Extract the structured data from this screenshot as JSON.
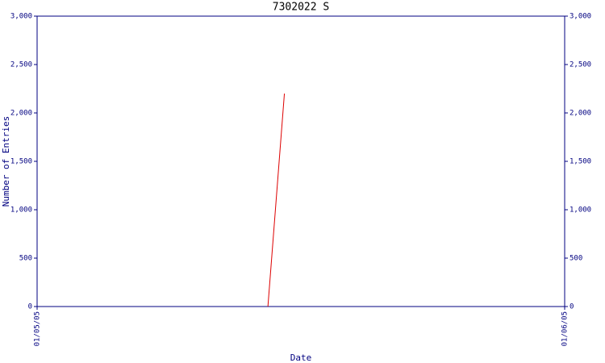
{
  "chart_data": {
    "type": "line",
    "title": "7302022 S",
    "x_label": "Date",
    "y_label": "Number of Entries",
    "categories": [
      "01/05/05",
      null,
      null,
      null,
      null,
      null,
      null,
      null,
      null,
      null,
      null,
      null,
      null,
      null,
      null,
      null,
      null,
      null,
      null,
      null,
      null,
      null,
      null,
      null,
      null,
      null,
      null,
      null,
      null,
      null,
      null,
      null,
      "01/06/05"
    ],
    "values": [
      null,
      null,
      null,
      null,
      null,
      null,
      null,
      null,
      null,
      null,
      null,
      null,
      null,
      null,
      0,
      2200,
      null,
      null,
      null,
      null,
      null,
      null,
      null,
      null,
      null,
      null,
      null,
      null,
      null,
      null,
      null,
      null,
      null
    ],
    "color": "#dd0000",
    "ylim": [
      0,
      3000
    ],
    "yticks": [
      0,
      500,
      {
        "value": 1000,
        "label": "1,000"
      },
      {
        "value": 1500,
        "label": "1,500"
      },
      {
        "value": 2000,
        "label": "2,000"
      },
      {
        "value": 2500,
        "label": "2,500"
      },
      {
        "value": 3000,
        "label": "3,000"
      }
    ],
    "y2lim": [
      0,
      3000
    ],
    "y2ticks": [
      0,
      500,
      {
        "value": 1000,
        "label": "1,000"
      },
      {
        "value": 1500,
        "label": "1,500"
      },
      {
        "value": 2000,
        "label": "2,000"
      },
      {
        "value": 2500,
        "label": "2,500"
      },
      {
        "value": 3000,
        "label": "3,000"
      }
    ]
  }
}
